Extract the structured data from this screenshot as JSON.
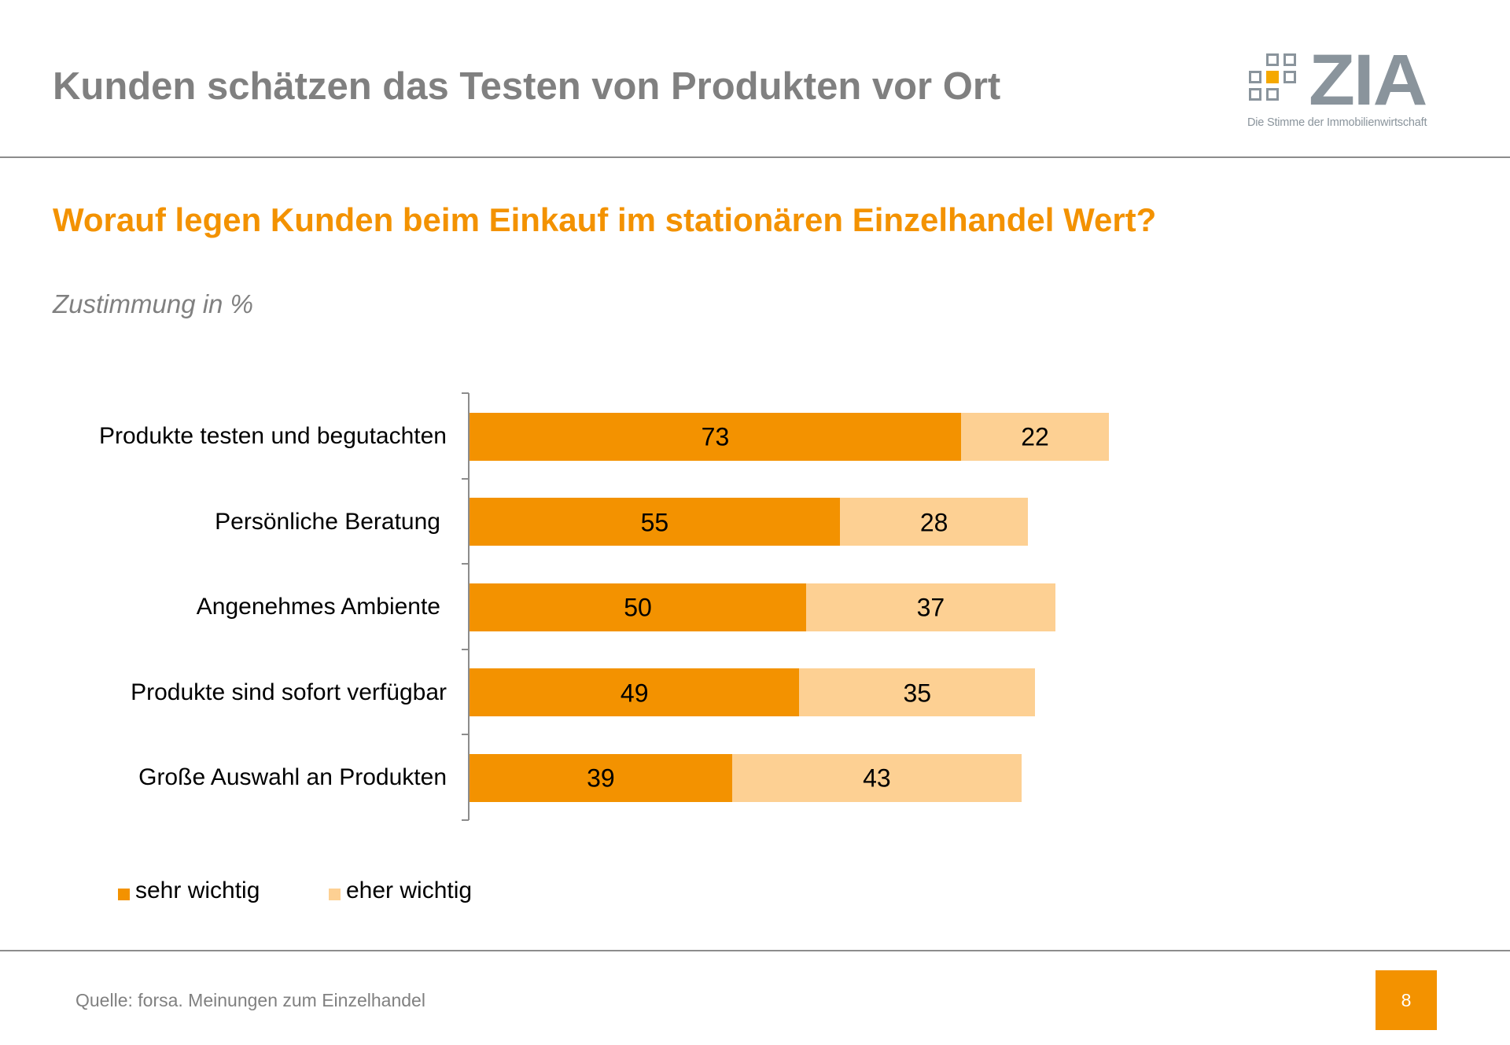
{
  "header": {
    "title": "Kunden schätzen das Testen von Produkten vor Ort",
    "logo": {
      "wordmark": "ZIA",
      "tagline": "Die Stimme der Immobilienwirtschaft",
      "icon": "grid-squares-logo-icon",
      "accent_color": "#F5A800",
      "color": "#8A949C"
    }
  },
  "subtitle": "Worauf legen Kunden beim Einkauf im stationären Einzelhandel Wert?",
  "unit_label": "Zustimmung in %",
  "chart_data": {
    "type": "bar",
    "orientation": "horizontal",
    "stacked": true,
    "title": "Worauf legen Kunden beim Einkauf im stationären Einzelhandel Wert?",
    "xlabel": "",
    "ylabel": "Zustimmung in %",
    "xlim": [
      0,
      100
    ],
    "grid": false,
    "legend_position": "bottom-left",
    "categories": [
      "Produkte testen und begutachten",
      "Persönliche Beratung",
      "Angenehmes Ambiente",
      "Produkte sind sofort verfügbar",
      "Große Auswahl an Produkten"
    ],
    "series": [
      {
        "name": "sehr wichtig",
        "color": "#F39200",
        "values": [
          73,
          55,
          50,
          49,
          39
        ]
      },
      {
        "name": "eher wichtig",
        "color": "#FDD093",
        "values": [
          22,
          28,
          37,
          35,
          43
        ]
      }
    ]
  },
  "footer": {
    "source": "Quelle: forsa. Meinungen zum Einzelhandel",
    "page_number": "8"
  }
}
